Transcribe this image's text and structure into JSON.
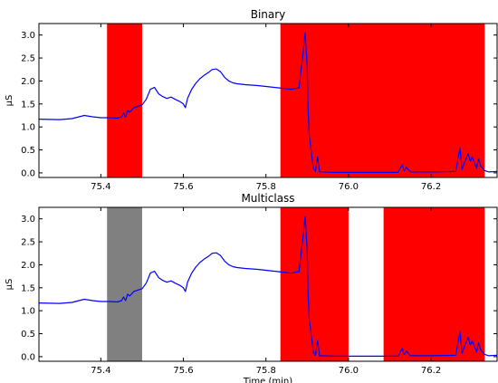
{
  "chart_data": [
    {
      "type": "line",
      "title": "Binary",
      "xlabel": "",
      "ylabel": "μS",
      "xlim": [
        75.25,
        76.36
      ],
      "ylim": [
        -0.1,
        3.25
      ],
      "xticks": [
        "75.4",
        "75.6",
        "75.8",
        "76.0",
        "76.2"
      ],
      "yticks": [
        "0.0",
        "0.5",
        "1.0",
        "1.5",
        "2.0",
        "2.5",
        "3.0"
      ],
      "line_color": "#0000ff",
      "regions": [
        {
          "x0": 75.415,
          "x1": 75.5,
          "color": "#ff0000"
        },
        {
          "x0": 75.835,
          "x1": 76.33,
          "color": "#ff0000"
        }
      ],
      "series": [
        {
          "x": [
            75.25,
            75.3,
            75.33,
            75.36,
            75.38,
            75.4,
            75.42,
            75.44,
            75.45,
            75.455,
            75.46,
            75.465,
            75.47,
            75.48,
            75.49,
            75.5,
            75.51,
            75.52,
            75.53,
            75.54,
            75.55,
            75.56,
            75.57,
            75.58,
            75.59,
            75.6,
            75.605,
            75.61,
            75.62,
            75.63,
            75.64,
            75.65,
            75.66,
            75.67,
            75.68,
            75.69,
            75.7,
            75.71,
            75.72,
            75.73,
            75.75,
            75.78,
            75.8,
            75.83,
            75.86,
            75.88,
            75.89,
            75.895,
            75.9,
            75.902,
            75.905,
            75.91,
            75.915,
            75.92,
            75.925,
            75.93,
            75.94,
            75.96,
            76.0,
            76.05,
            76.1,
            76.12,
            76.13,
            76.135,
            76.14,
            76.15,
            76.2,
            76.26,
            76.27,
            76.275,
            76.28,
            76.29,
            76.295,
            76.3,
            76.31,
            76.315,
            76.32,
            76.33,
            76.34,
            76.36
          ],
          "y": [
            1.17,
            1.16,
            1.18,
            1.25,
            1.22,
            1.2,
            1.2,
            1.19,
            1.22,
            1.3,
            1.22,
            1.36,
            1.32,
            1.42,
            1.45,
            1.48,
            1.6,
            1.82,
            1.86,
            1.72,
            1.66,
            1.62,
            1.65,
            1.6,
            1.56,
            1.5,
            1.42,
            1.62,
            1.82,
            1.95,
            2.05,
            2.12,
            2.18,
            2.25,
            2.26,
            2.2,
            2.08,
            2.0,
            1.96,
            1.94,
            1.92,
            1.9,
            1.88,
            1.85,
            1.82,
            1.85,
            2.6,
            3.05,
            2.3,
            1.4,
            0.8,
            0.45,
            0.1,
            0.03,
            0.35,
            0.02,
            0.02,
            0.01,
            0.01,
            0.01,
            0.01,
            0.01,
            0.18,
            0.05,
            0.12,
            0.02,
            0.02,
            0.03,
            0.55,
            0.08,
            0.2,
            0.42,
            0.25,
            0.35,
            0.1,
            0.3,
            0.15,
            0.05,
            0.02,
            0.03
          ]
        }
      ]
    },
    {
      "type": "line",
      "title": "Multiclass",
      "xlabel": "Time (min)",
      "ylabel": "μS",
      "xlim": [
        75.25,
        76.36
      ],
      "ylim": [
        -0.1,
        3.25
      ],
      "xticks": [
        "75.4",
        "75.6",
        "75.8",
        "76.0",
        "76.2"
      ],
      "yticks": [
        "0.0",
        "0.5",
        "1.0",
        "1.5",
        "2.0",
        "2.5",
        "3.0"
      ],
      "line_color": "#0000ff",
      "regions": [
        {
          "x0": 75.415,
          "x1": 75.5,
          "color": "#808080"
        },
        {
          "x0": 75.835,
          "x1": 76.0,
          "color": "#ff0000"
        },
        {
          "x0": 76.085,
          "x1": 76.33,
          "color": "#ff0000"
        }
      ],
      "series": [
        {
          "x": [
            75.25,
            75.3,
            75.33,
            75.36,
            75.38,
            75.4,
            75.42,
            75.44,
            75.45,
            75.455,
            75.46,
            75.465,
            75.47,
            75.48,
            75.49,
            75.5,
            75.51,
            75.52,
            75.53,
            75.54,
            75.55,
            75.56,
            75.57,
            75.58,
            75.59,
            75.6,
            75.605,
            75.61,
            75.62,
            75.63,
            75.64,
            75.65,
            75.66,
            75.67,
            75.68,
            75.69,
            75.7,
            75.71,
            75.72,
            75.73,
            75.75,
            75.78,
            75.8,
            75.83,
            75.86,
            75.88,
            75.89,
            75.895,
            75.9,
            75.902,
            75.905,
            75.91,
            75.915,
            75.92,
            75.925,
            75.93,
            75.94,
            75.96,
            76.0,
            76.05,
            76.1,
            76.12,
            76.13,
            76.135,
            76.14,
            76.15,
            76.2,
            76.26,
            76.27,
            76.275,
            76.28,
            76.29,
            76.295,
            76.3,
            76.31,
            76.315,
            76.32,
            76.33,
            76.34,
            76.36
          ],
          "y": [
            1.17,
            1.16,
            1.18,
            1.25,
            1.22,
            1.2,
            1.2,
            1.19,
            1.22,
            1.3,
            1.22,
            1.36,
            1.32,
            1.42,
            1.45,
            1.48,
            1.6,
            1.82,
            1.86,
            1.72,
            1.66,
            1.62,
            1.65,
            1.6,
            1.56,
            1.5,
            1.42,
            1.62,
            1.82,
            1.95,
            2.05,
            2.12,
            2.18,
            2.25,
            2.26,
            2.2,
            2.08,
            2.0,
            1.96,
            1.94,
            1.92,
            1.9,
            1.88,
            1.85,
            1.82,
            1.85,
            2.6,
            3.05,
            2.3,
            1.4,
            0.8,
            0.45,
            0.1,
            0.03,
            0.35,
            0.02,
            0.02,
            0.01,
            0.01,
            0.01,
            0.01,
            0.01,
            0.18,
            0.05,
            0.12,
            0.02,
            0.02,
            0.03,
            0.55,
            0.08,
            0.2,
            0.42,
            0.25,
            0.35,
            0.1,
            0.3,
            0.15,
            0.05,
            0.02,
            0.03
          ]
        }
      ]
    }
  ]
}
